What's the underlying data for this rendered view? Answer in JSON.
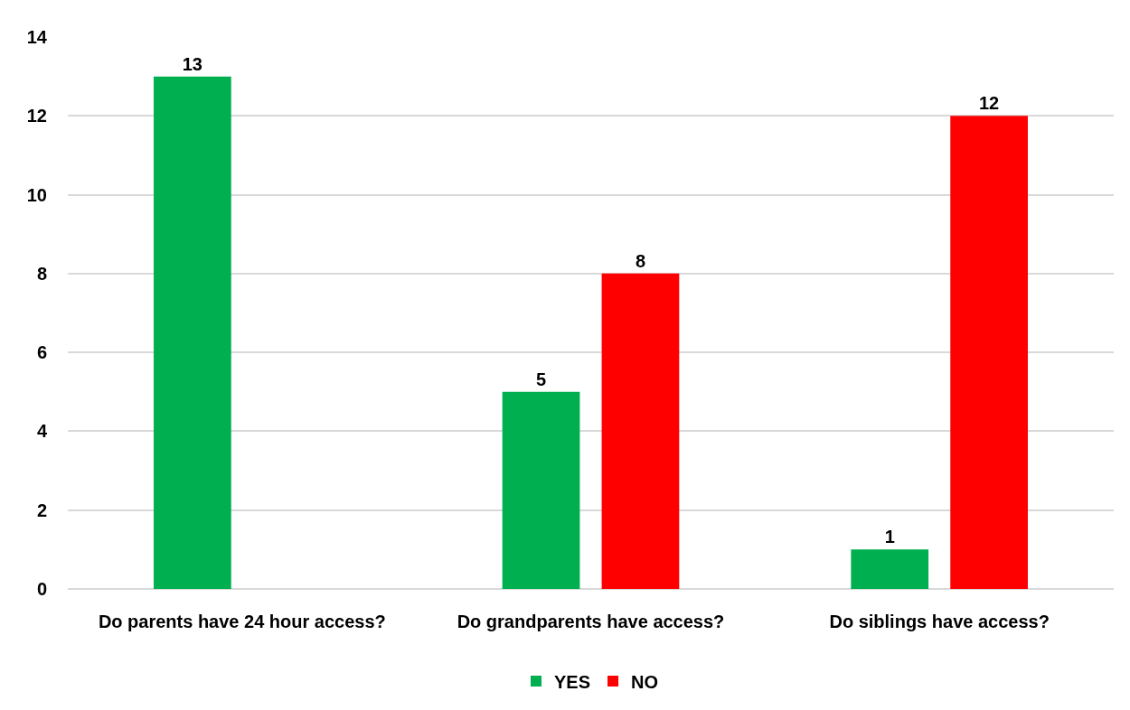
{
  "chart_data": {
    "type": "bar",
    "categories": [
      "Do parents have 24 hour access?",
      "Do grandparents have access?",
      "Do siblings have access?"
    ],
    "series": [
      {
        "name": "YES",
        "color": "#00b050",
        "values": [
          13,
          5,
          1
        ]
      },
      {
        "name": "NO",
        "color": "#ff0000",
        "values": [
          null,
          8,
          12
        ]
      }
    ],
    "ylim": [
      0,
      14
    ],
    "yticks": [
      0,
      2,
      4,
      6,
      8,
      10,
      12,
      14
    ],
    "grid": "y",
    "legend": "bottom",
    "data_labels": true
  }
}
